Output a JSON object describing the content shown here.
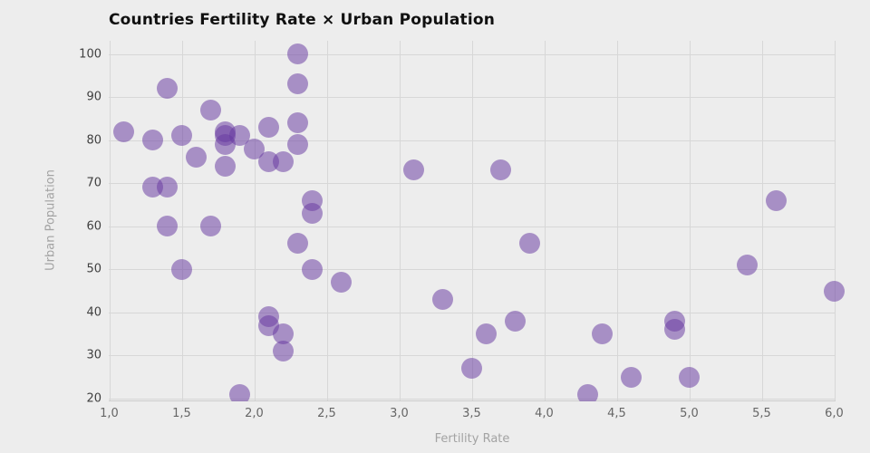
{
  "title": "Countries Fertility Rate × Urban Population",
  "colors": {
    "background": "#ededed",
    "gridline": "#d7d7d7",
    "axis_line": "#cccccc",
    "title_text": "#101010",
    "tick_text_x": "#666666",
    "tick_text_y": "#3f3f3f",
    "axis_title_text": "#a3a3a3",
    "marker": "#683aa2"
  },
  "chart_data": {
    "type": "scatter",
    "title": "Countries Fertility Rate × Urban Population",
    "xlabel": "Fertility Rate",
    "ylabel": "Urban Population",
    "xlim": [
      1.0,
      6.0
    ],
    "ylim": [
      20,
      100
    ],
    "grid": true,
    "legend": "none",
    "marker_color": "#683aa2",
    "marker_opacity": 0.52,
    "x_tick_values": [
      1.0,
      1.5,
      2.0,
      2.5,
      3.0,
      3.5,
      4.0,
      4.5,
      5.0,
      5.5,
      6.0
    ],
    "x_tick_labels": [
      "1,0",
      "1,5",
      "2,0",
      "2,5",
      "3,0",
      "3,5",
      "4,0",
      "4,5",
      "5,0",
      "5,5",
      "6,0"
    ],
    "y_tick_values": [
      20,
      30,
      40,
      50,
      60,
      70,
      80,
      90,
      100
    ],
    "y_tick_labels": [
      "20",
      "30",
      "40",
      "50",
      "60",
      "70",
      "80",
      "90",
      "100"
    ],
    "points": [
      [
        1.1,
        82
      ],
      [
        1.3,
        80
      ],
      [
        1.3,
        69
      ],
      [
        1.4,
        92
      ],
      [
        1.4,
        69
      ],
      [
        1.4,
        60
      ],
      [
        1.5,
        81
      ],
      [
        1.5,
        50
      ],
      [
        1.6,
        76
      ],
      [
        1.7,
        87
      ],
      [
        1.7,
        60
      ],
      [
        1.8,
        82
      ],
      [
        1.8,
        81
      ],
      [
        1.8,
        79
      ],
      [
        1.8,
        74
      ],
      [
        1.9,
        81
      ],
      [
        1.9,
        21
      ],
      [
        2.0,
        78
      ],
      [
        2.1,
        83
      ],
      [
        2.1,
        75
      ],
      [
        2.1,
        39
      ],
      [
        2.1,
        37
      ],
      [
        2.2,
        75
      ],
      [
        2.2,
        35
      ],
      [
        2.2,
        31
      ],
      [
        2.3,
        100
      ],
      [
        2.3,
        93
      ],
      [
        2.3,
        84
      ],
      [
        2.3,
        79
      ],
      [
        2.3,
        56
      ],
      [
        2.4,
        66
      ],
      [
        2.4,
        63
      ],
      [
        2.4,
        50
      ],
      [
        2.6,
        47
      ],
      [
        3.1,
        73
      ],
      [
        3.3,
        43
      ],
      [
        3.5,
        27
      ],
      [
        3.6,
        35
      ],
      [
        3.7,
        73
      ],
      [
        3.8,
        38
      ],
      [
        3.9,
        56
      ],
      [
        4.3,
        21
      ],
      [
        4.4,
        35
      ],
      [
        4.6,
        25
      ],
      [
        4.9,
        38
      ],
      [
        4.9,
        36
      ],
      [
        5.0,
        25
      ],
      [
        5.4,
        51
      ],
      [
        5.6,
        66
      ],
      [
        6.0,
        45
      ]
    ]
  }
}
